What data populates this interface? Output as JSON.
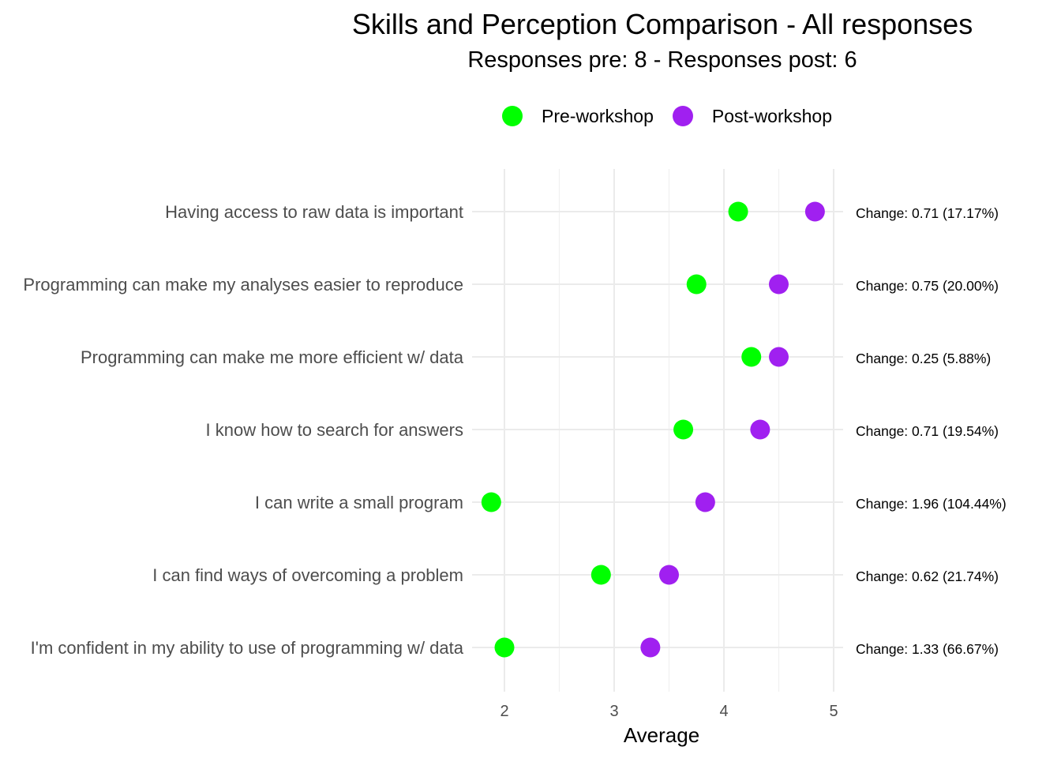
{
  "chart_data": {
    "type": "scatter",
    "title": "Skills and Perception Comparison - All responses",
    "subtitle": "Responses pre: 8 - Responses post: 6",
    "xlabel": "Average",
    "ylabel": "",
    "xlim": [
      1.85,
      5.0
    ],
    "xticks": [
      2,
      3,
      4,
      5
    ],
    "legend_position": "top",
    "categories": [
      "Having access to raw data is important",
      "Programming can make my analyses easier to reproduce",
      "Programming can make me more efficient w/ data",
      "I know how to search for answers",
      "I can write a small program",
      "I can find ways of overcoming a problem",
      "I'm confident in my ability to use of programming w/ data"
    ],
    "series": [
      {
        "name": "Pre-workshop",
        "color": "#00ff00",
        "values": [
          4.13,
          3.75,
          4.25,
          3.63,
          1.88,
          2.88,
          2.0
        ]
      },
      {
        "name": "Post-workshop",
        "color": "#a020f0",
        "values": [
          4.83,
          4.5,
          4.5,
          4.33,
          3.83,
          3.5,
          3.33
        ]
      }
    ],
    "annotations": [
      "Change: 0.71 (17.17%)",
      "Change: 0.75 (20.00%)",
      "Change: 0.25 (5.88%)",
      "Change: 0.71 (19.54%)",
      "Change: 1.96 (104.44%)",
      "Change: 0.62 (21.74%)",
      "Change: 1.33 (66.67%)"
    ],
    "grid": true
  }
}
